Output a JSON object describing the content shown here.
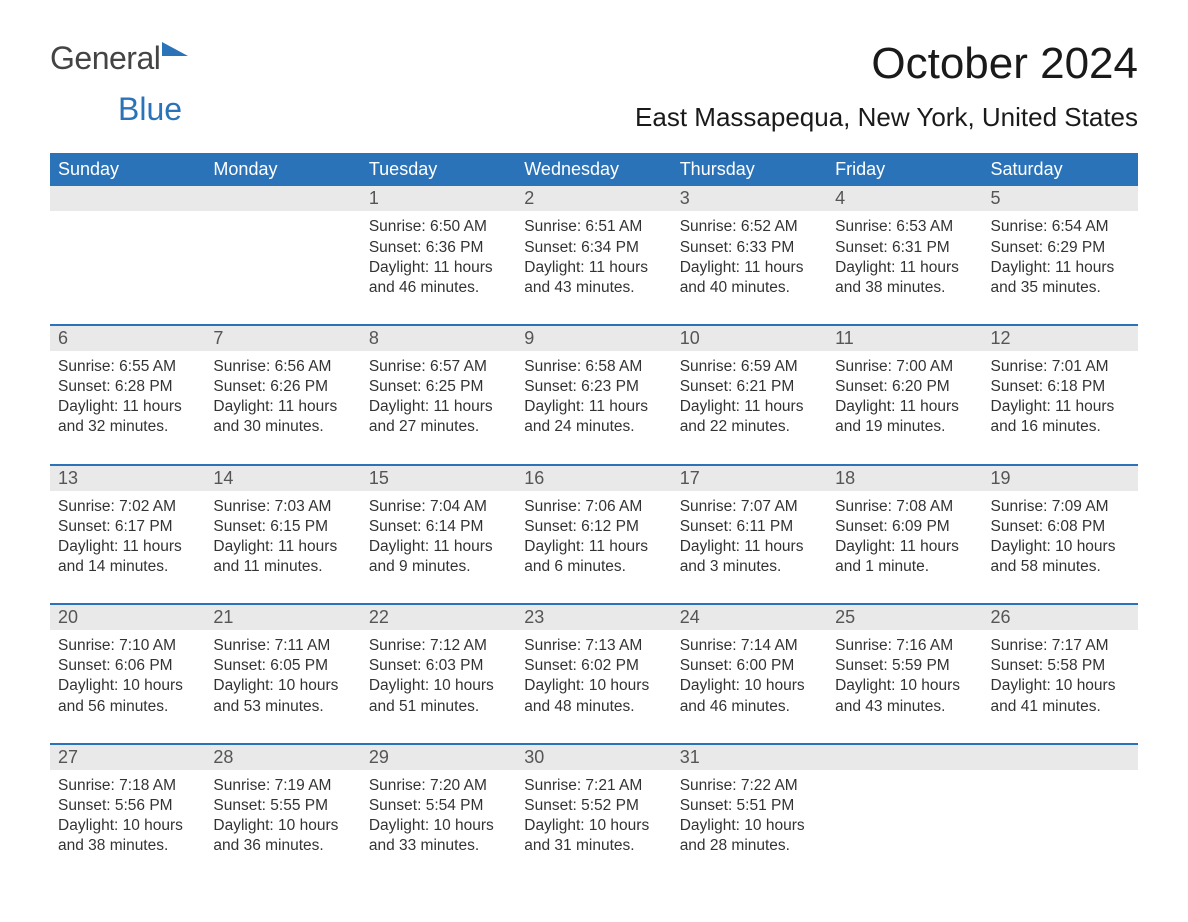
{
  "logo": {
    "text1": "General",
    "text2": "Blue"
  },
  "month_title": "October 2024",
  "location": "East Massapequa, New York, United States",
  "colors": {
    "header_bg": "#2b73b8",
    "header_fg": "#ffffff",
    "daynum_bg": "#e9e9e9",
    "daynum_fg": "#555555",
    "body_fg": "#333333",
    "page_bg": "#ffffff",
    "rule": "#2b73b8"
  },
  "typography": {
    "month_title_size_pt": 33,
    "location_size_pt": 20,
    "dow_size_pt": 14,
    "daynum_size_pt": 14,
    "cell_size_pt": 12
  },
  "days_of_week": [
    "Sunday",
    "Monday",
    "Tuesday",
    "Wednesday",
    "Thursday",
    "Friday",
    "Saturday"
  ],
  "first_weekday_index": 2,
  "weeks": [
    [
      null,
      null,
      {
        "n": 1,
        "sunrise": "6:50 AM",
        "sunset": "6:36 PM",
        "daylight": "11 hours and 46 minutes."
      },
      {
        "n": 2,
        "sunrise": "6:51 AM",
        "sunset": "6:34 PM",
        "daylight": "11 hours and 43 minutes."
      },
      {
        "n": 3,
        "sunrise": "6:52 AM",
        "sunset": "6:33 PM",
        "daylight": "11 hours and 40 minutes."
      },
      {
        "n": 4,
        "sunrise": "6:53 AM",
        "sunset": "6:31 PM",
        "daylight": "11 hours and 38 minutes."
      },
      {
        "n": 5,
        "sunrise": "6:54 AM",
        "sunset": "6:29 PM",
        "daylight": "11 hours and 35 minutes."
      }
    ],
    [
      {
        "n": 6,
        "sunrise": "6:55 AM",
        "sunset": "6:28 PM",
        "daylight": "11 hours and 32 minutes."
      },
      {
        "n": 7,
        "sunrise": "6:56 AM",
        "sunset": "6:26 PM",
        "daylight": "11 hours and 30 minutes."
      },
      {
        "n": 8,
        "sunrise": "6:57 AM",
        "sunset": "6:25 PM",
        "daylight": "11 hours and 27 minutes."
      },
      {
        "n": 9,
        "sunrise": "6:58 AM",
        "sunset": "6:23 PM",
        "daylight": "11 hours and 24 minutes."
      },
      {
        "n": 10,
        "sunrise": "6:59 AM",
        "sunset": "6:21 PM",
        "daylight": "11 hours and 22 minutes."
      },
      {
        "n": 11,
        "sunrise": "7:00 AM",
        "sunset": "6:20 PM",
        "daylight": "11 hours and 19 minutes."
      },
      {
        "n": 12,
        "sunrise": "7:01 AM",
        "sunset": "6:18 PM",
        "daylight": "11 hours and 16 minutes."
      }
    ],
    [
      {
        "n": 13,
        "sunrise": "7:02 AM",
        "sunset": "6:17 PM",
        "daylight": "11 hours and 14 minutes."
      },
      {
        "n": 14,
        "sunrise": "7:03 AM",
        "sunset": "6:15 PM",
        "daylight": "11 hours and 11 minutes."
      },
      {
        "n": 15,
        "sunrise": "7:04 AM",
        "sunset": "6:14 PM",
        "daylight": "11 hours and 9 minutes."
      },
      {
        "n": 16,
        "sunrise": "7:06 AM",
        "sunset": "6:12 PM",
        "daylight": "11 hours and 6 minutes."
      },
      {
        "n": 17,
        "sunrise": "7:07 AM",
        "sunset": "6:11 PM",
        "daylight": "11 hours and 3 minutes."
      },
      {
        "n": 18,
        "sunrise": "7:08 AM",
        "sunset": "6:09 PM",
        "daylight": "11 hours and 1 minute."
      },
      {
        "n": 19,
        "sunrise": "7:09 AM",
        "sunset": "6:08 PM",
        "daylight": "10 hours and 58 minutes."
      }
    ],
    [
      {
        "n": 20,
        "sunrise": "7:10 AM",
        "sunset": "6:06 PM",
        "daylight": "10 hours and 56 minutes."
      },
      {
        "n": 21,
        "sunrise": "7:11 AM",
        "sunset": "6:05 PM",
        "daylight": "10 hours and 53 minutes."
      },
      {
        "n": 22,
        "sunrise": "7:12 AM",
        "sunset": "6:03 PM",
        "daylight": "10 hours and 51 minutes."
      },
      {
        "n": 23,
        "sunrise": "7:13 AM",
        "sunset": "6:02 PM",
        "daylight": "10 hours and 48 minutes."
      },
      {
        "n": 24,
        "sunrise": "7:14 AM",
        "sunset": "6:00 PM",
        "daylight": "10 hours and 46 minutes."
      },
      {
        "n": 25,
        "sunrise": "7:16 AM",
        "sunset": "5:59 PM",
        "daylight": "10 hours and 43 minutes."
      },
      {
        "n": 26,
        "sunrise": "7:17 AM",
        "sunset": "5:58 PM",
        "daylight": "10 hours and 41 minutes."
      }
    ],
    [
      {
        "n": 27,
        "sunrise": "7:18 AM",
        "sunset": "5:56 PM",
        "daylight": "10 hours and 38 minutes."
      },
      {
        "n": 28,
        "sunrise": "7:19 AM",
        "sunset": "5:55 PM",
        "daylight": "10 hours and 36 minutes."
      },
      {
        "n": 29,
        "sunrise": "7:20 AM",
        "sunset": "5:54 PM",
        "daylight": "10 hours and 33 minutes."
      },
      {
        "n": 30,
        "sunrise": "7:21 AM",
        "sunset": "5:52 PM",
        "daylight": "10 hours and 31 minutes."
      },
      {
        "n": 31,
        "sunrise": "7:22 AM",
        "sunset": "5:51 PM",
        "daylight": "10 hours and 28 minutes."
      },
      null,
      null
    ]
  ],
  "labels": {
    "sunrise": "Sunrise:",
    "sunset": "Sunset:",
    "daylight": "Daylight:"
  }
}
